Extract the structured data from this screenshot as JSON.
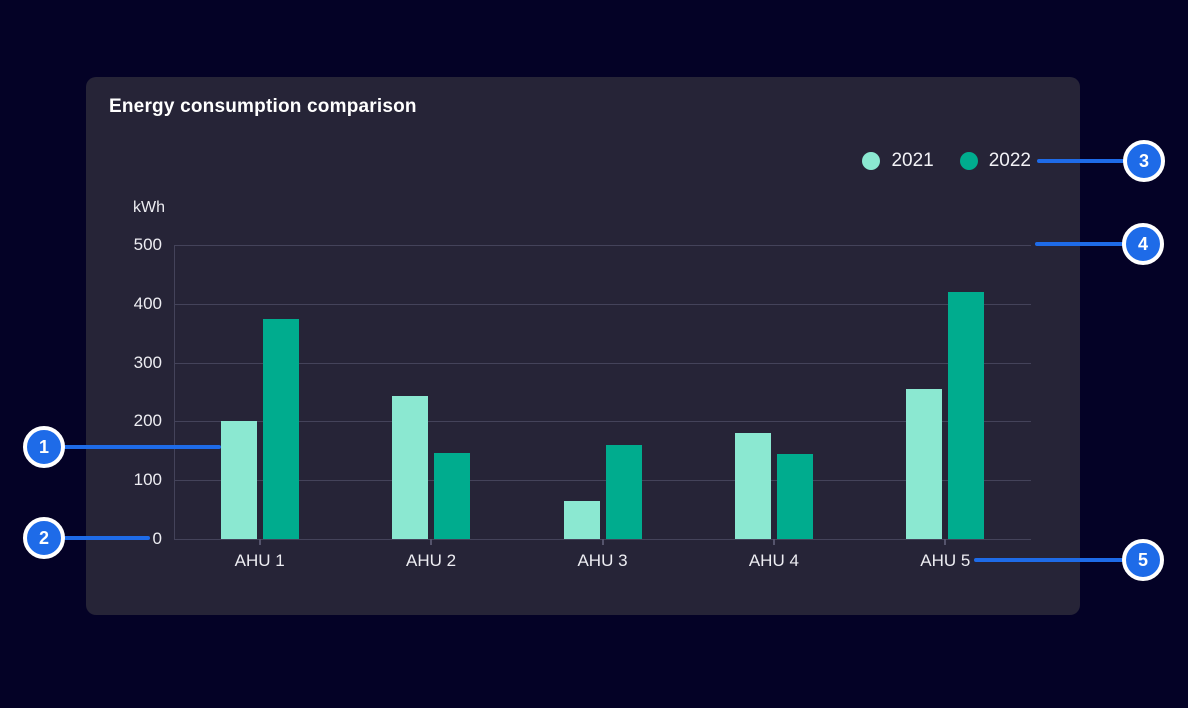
{
  "page": {
    "background": "#040226"
  },
  "card": {
    "background": "#262437"
  },
  "chart_data": {
    "type": "bar",
    "title": "Energy consumption comparison",
    "xlabel": "",
    "ylabel": "kWh",
    "categories": [
      "AHU 1",
      "AHU 2",
      "AHU 3",
      "AHU 4",
      "AHU 5"
    ],
    "series": [
      {
        "name": "2021",
        "color": "#8BE8D1",
        "values": [
          200,
          243,
          64,
          180,
          255
        ]
      },
      {
        "name": "2022",
        "color": "#00AC8E",
        "values": [
          375,
          146,
          160,
          145,
          420
        ]
      }
    ],
    "ylim": [
      0,
      500
    ],
    "yticks": [
      500,
      400,
      300,
      200,
      100,
      0
    ],
    "grid": true,
    "legend_position": "top-right"
  },
  "callouts": [
    "1",
    "2",
    "3",
    "4",
    "5"
  ],
  "colors": {
    "callout_blue": "#1E6BE8",
    "series_2021": "#8BE8D1",
    "series_2022": "#00AC8E",
    "gridline": "#44435A",
    "axis_text": "#EDEDF2",
    "title_text": "#FFFFFF"
  }
}
